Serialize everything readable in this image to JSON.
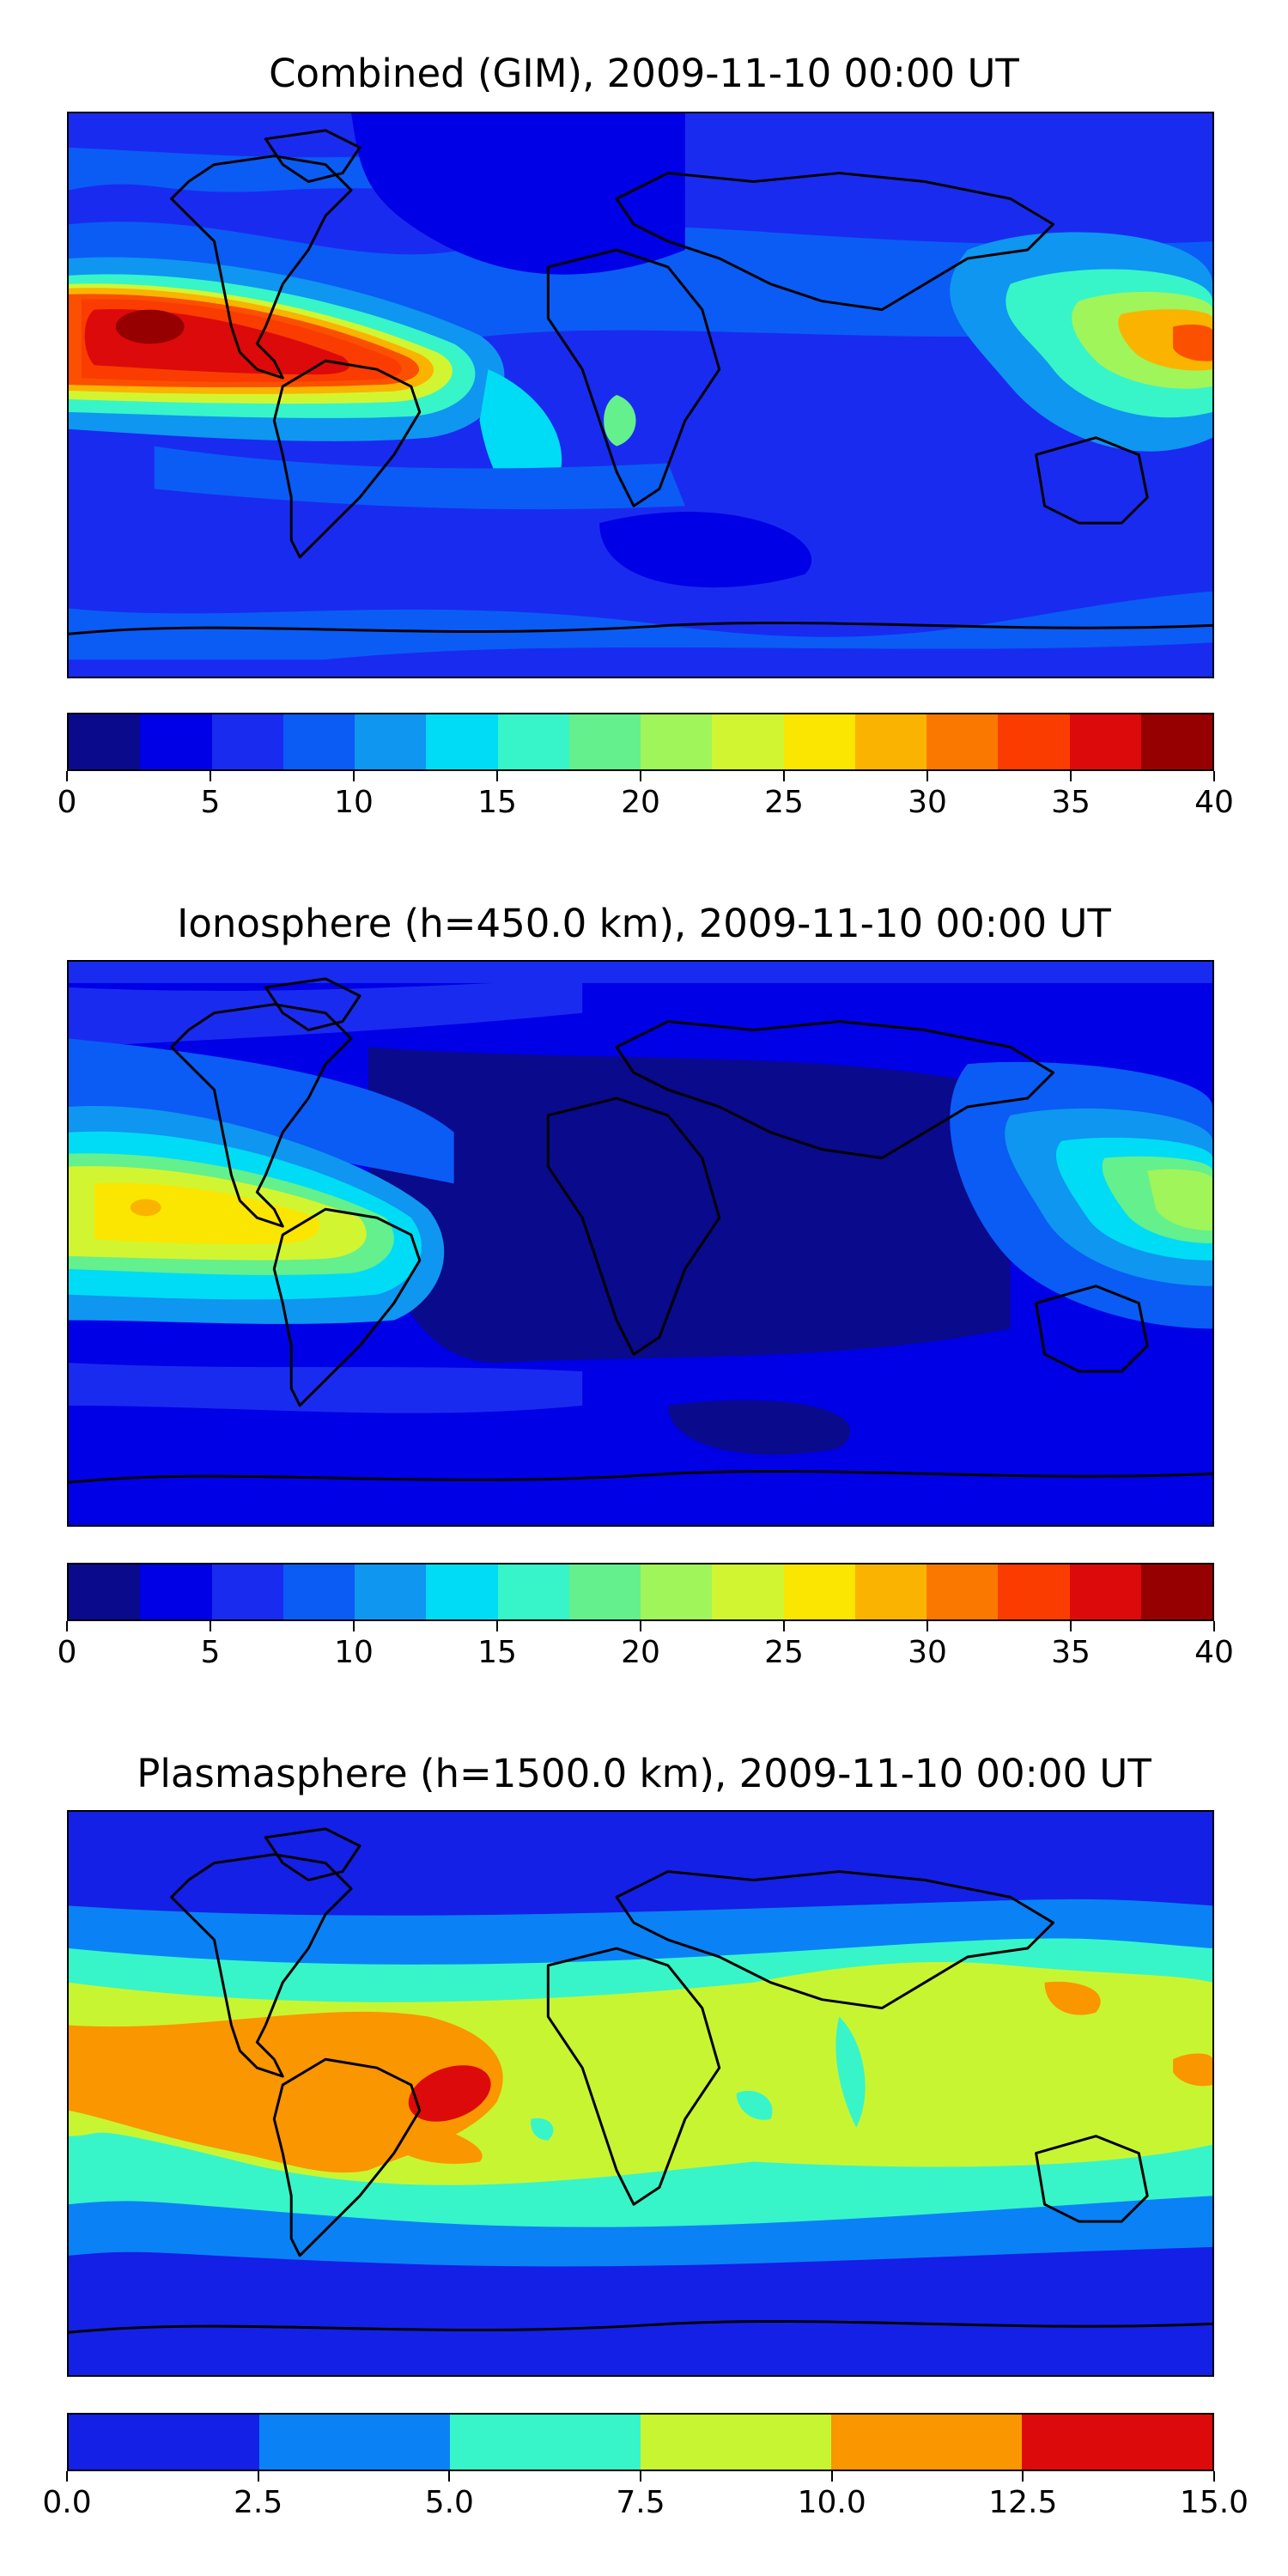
{
  "panels": [
    {
      "id": "combined",
      "title": "Combined (GIM), 2009-11-10 00:00 UT",
      "colorbar": {
        "min": 0,
        "max": 40,
        "ticks": [
          "0",
          "5",
          "10",
          "15",
          "20",
          "25",
          "30",
          "35",
          "40"
        ],
        "levels": [
          "#0a0a8c",
          "#0000e6",
          "#1a2bf0",
          "#0a5cf5",
          "#0f96f0",
          "#00dcf5",
          "#37f5c8",
          "#64f08c",
          "#a0f55a",
          "#d2f532",
          "#fae600",
          "#fab400",
          "#fa7800",
          "#fa3c00",
          "#dc0a0a",
          "#960000"
        ]
      }
    },
    {
      "id": "ionosphere",
      "title": "Ionosphere  (h=450.0 km), 2009-11-10 00:00 UT",
      "colorbar": {
        "min": 0,
        "max": 40,
        "ticks": [
          "0",
          "5",
          "10",
          "15",
          "20",
          "25",
          "30",
          "35",
          "40"
        ],
        "levels": [
          "#0a0a8c",
          "#0000e6",
          "#1a2bf0",
          "#0a5cf5",
          "#0f96f0",
          "#00dcf5",
          "#37f5c8",
          "#64f08c",
          "#a0f55a",
          "#d2f532",
          "#fae600",
          "#fab400",
          "#fa7800",
          "#fa3c00",
          "#dc0a0a",
          "#960000"
        ]
      }
    },
    {
      "id": "plasmasphere",
      "title": "Plasmasphere (h=1500.0 km), 2009-11-10 00:00 UT",
      "colorbar": {
        "min": 0,
        "max": 15,
        "ticks": [
          "0.0",
          "2.5",
          "5.0",
          "7.5",
          "10.0",
          "12.5",
          "15.0"
        ],
        "levels": [
          "#1420e6",
          "#0a82f5",
          "#37f5c8",
          "#c8f532",
          "#fa9600",
          "#dc0a0a"
        ]
      }
    }
  ]
}
